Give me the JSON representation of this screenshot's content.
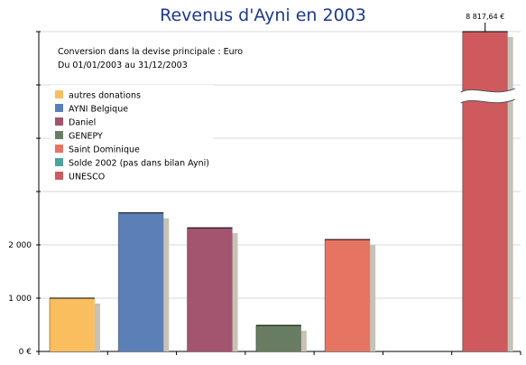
{
  "chart_data": {
    "type": "bar",
    "title": "Revenus d'Ayni en 2003",
    "subtitle_lines": [
      "Conversion dans la devise principale : Euro",
      "Du 01/01/2003 au 31/12/2003"
    ],
    "y_tick_labels": [
      "0 €",
      "1 000",
      "2 000"
    ],
    "y_ticks": [
      0,
      1000,
      2000
    ],
    "ylim": [
      0,
      2600
    ],
    "y_axis_break": true,
    "grid": true,
    "legend_position": "top-left",
    "series": [
      {
        "name": "autres donations",
        "value": 1000,
        "color": "#fbbe5e"
      },
      {
        "name": "AYNI Belgique",
        "value": 2600,
        "color": "#5b80b8"
      },
      {
        "name": "Daniel",
        "value": 2320,
        "color": "#a3546f"
      },
      {
        "name": "GENEPY",
        "value": 490,
        "color": "#687c62"
      },
      {
        "name": "Saint Dominique",
        "value": 2100,
        "color": "#e57562"
      },
      {
        "name": "Solde 2002 (pas dans bilan Ayni)",
        "value": 0,
        "color": "#4aa39d"
      },
      {
        "name": "UNESCO",
        "value": 8817.64,
        "color": "#cf5a5e"
      }
    ],
    "data_labels": [
      {
        "series": "UNESCO",
        "text": "8 817,64 €"
      }
    ]
  }
}
